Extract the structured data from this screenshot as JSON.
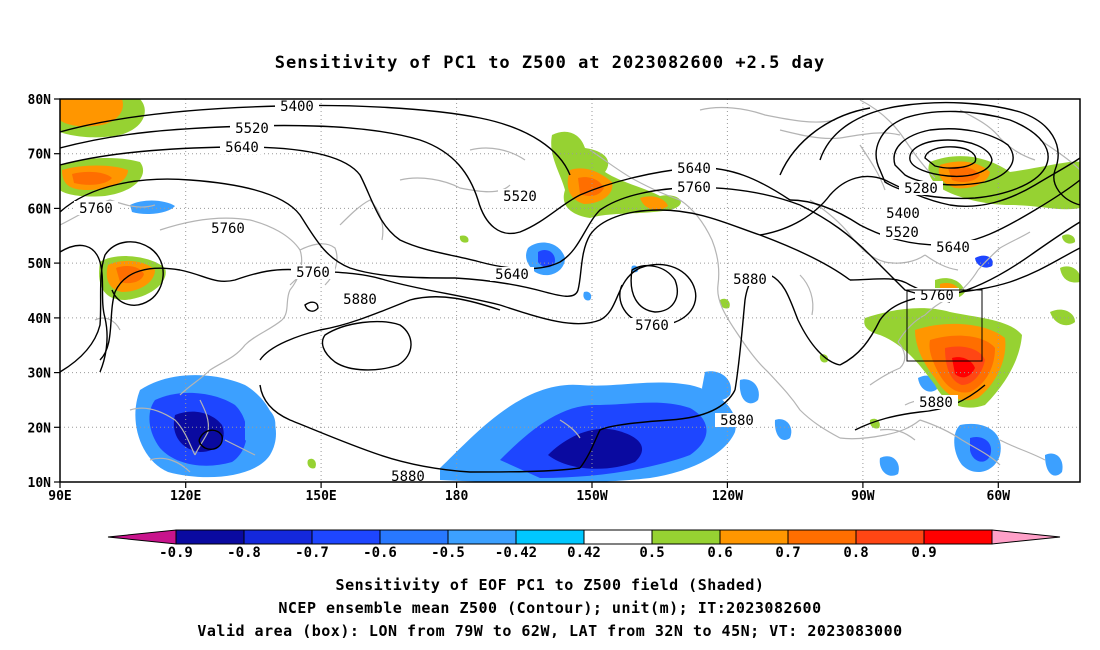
{
  "title": "Sensitivity of PC1 to Z500 at 2023082600 +2.5 day",
  "lat_ticks": [
    "80N",
    "70N",
    "60N",
    "50N",
    "40N",
    "30N",
    "20N",
    "10N"
  ],
  "lon_ticks": [
    "90E",
    "120E",
    "150E",
    "180",
    "150W",
    "120W",
    "90W",
    "60W"
  ],
  "map_extent": {
    "lon_west": "90E",
    "lon_east": "50W",
    "lat_south": "10N",
    "lat_north": "80N"
  },
  "contour_labels": [
    "5400",
    "5520",
    "5640",
    "5760",
    "5760",
    "5640",
    "5760",
    "5520",
    "5880",
    "5640",
    "5760",
    "5880",
    "5760",
    "5280",
    "5400",
    "5520",
    "5640",
    "5760",
    "5880",
    "5880",
    "5880"
  ],
  "valid_box": {
    "lon": [
      "79W",
      "62W"
    ],
    "lat": [
      "32N",
      "45N"
    ]
  },
  "colorbar": {
    "labels": [
      "-0.9",
      "-0.8",
      "-0.7",
      "-0.6",
      "-0.5",
      "-0.42",
      "0.42",
      "0.5",
      "0.6",
      "0.7",
      "0.8",
      "0.9"
    ],
    "colors": [
      "#c8148c",
      "#0a0aa0",
      "#1428dc",
      "#1e46ff",
      "#2878ff",
      "#3ca0ff",
      "#00c8ff",
      "#ffffff",
      "#96d232",
      "#ff9600",
      "#ff6e00",
      "#ff4614",
      "#ff0000",
      "#ffa0c8"
    ]
  },
  "colors": {
    "negative_core": "#1e46ff",
    "positive_core": "#ff4614",
    "coastline": "#b4b4b4",
    "contour": "#000000"
  },
  "captions": {
    "line1": "Sensitivity of EOF PC1 to Z500 field (Shaded)",
    "line2": "NCEP ensemble mean Z500 (Contour); unit(m); IT:2023082600",
    "line3": "Valid area (box): LON from 79W to 62W, LAT from 32N to 45N; VT: 2023083000"
  }
}
